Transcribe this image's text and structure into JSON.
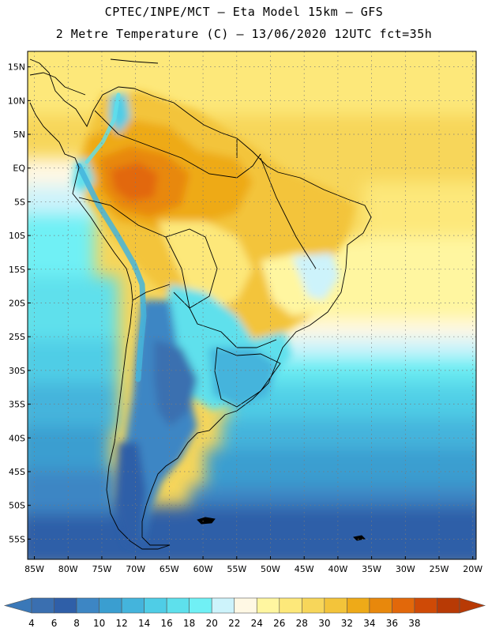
{
  "header": {
    "line1": "CPTEC/INPE/MCT –  Eta Model 15km – GFS",
    "line2": "2 Metre Temperature (C) – 13/06/2020 12UTC fct=35h"
  },
  "map": {
    "lat_ticks": [
      {
        "value": 15,
        "label": "15N"
      },
      {
        "value": 10,
        "label": "10N"
      },
      {
        "value": 5,
        "label": "5N"
      },
      {
        "value": 0,
        "label": "EQ"
      },
      {
        "value": -5,
        "label": "5S"
      },
      {
        "value": -10,
        "label": "10S"
      },
      {
        "value": -15,
        "label": "15S"
      },
      {
        "value": -20,
        "label": "20S"
      },
      {
        "value": -25,
        "label": "25S"
      },
      {
        "value": -30,
        "label": "30S"
      },
      {
        "value": -35,
        "label": "35S"
      },
      {
        "value": -40,
        "label": "40S"
      },
      {
        "value": -45,
        "label": "45S"
      },
      {
        "value": -50,
        "label": "50S"
      },
      {
        "value": -55,
        "label": "55S"
      }
    ],
    "lon_ticks": [
      {
        "value": -85,
        "label": "85W"
      },
      {
        "value": -80,
        "label": "80W"
      },
      {
        "value": -75,
        "label": "75W"
      },
      {
        "value": -70,
        "label": "70W"
      },
      {
        "value": -65,
        "label": "65W"
      },
      {
        "value": -60,
        "label": "60W"
      },
      {
        "value": -55,
        "label": "55W"
      },
      {
        "value": -50,
        "label": "50W"
      },
      {
        "value": -45,
        "label": "45W"
      },
      {
        "value": -40,
        "label": "40W"
      },
      {
        "value": -35,
        "label": "35W"
      },
      {
        "value": -30,
        "label": "30W"
      },
      {
        "value": -25,
        "label": "25W"
      },
      {
        "value": -20,
        "label": "20W"
      }
    ],
    "extent": {
      "lon_min": -86,
      "lon_max": -19.5,
      "lat_min": -58,
      "lat_max": 17.3
    }
  },
  "colorbar": {
    "labels": [
      "4",
      "6",
      "8",
      "10",
      "12",
      "14",
      "16",
      "18",
      "20",
      "22",
      "24",
      "26",
      "28",
      "30",
      "32",
      "34",
      "36",
      "38"
    ],
    "colors": [
      "#3a6fb0",
      "#2f5fa8",
      "#3d86c4",
      "#3a9ed0",
      "#44b4dc",
      "#4fcde6",
      "#5ee0ec",
      "#70f0f5",
      "#cdf3fb",
      "#fff8e4",
      "#fff6a0",
      "#fde87a",
      "#f7d65a",
      "#f3c43a",
      "#eeaa18",
      "#e8880c",
      "#e2680a",
      "#cf4a06",
      "#b83a05"
    ],
    "under_color": "#3a78b8",
    "over_color": "#b83a05"
  }
}
